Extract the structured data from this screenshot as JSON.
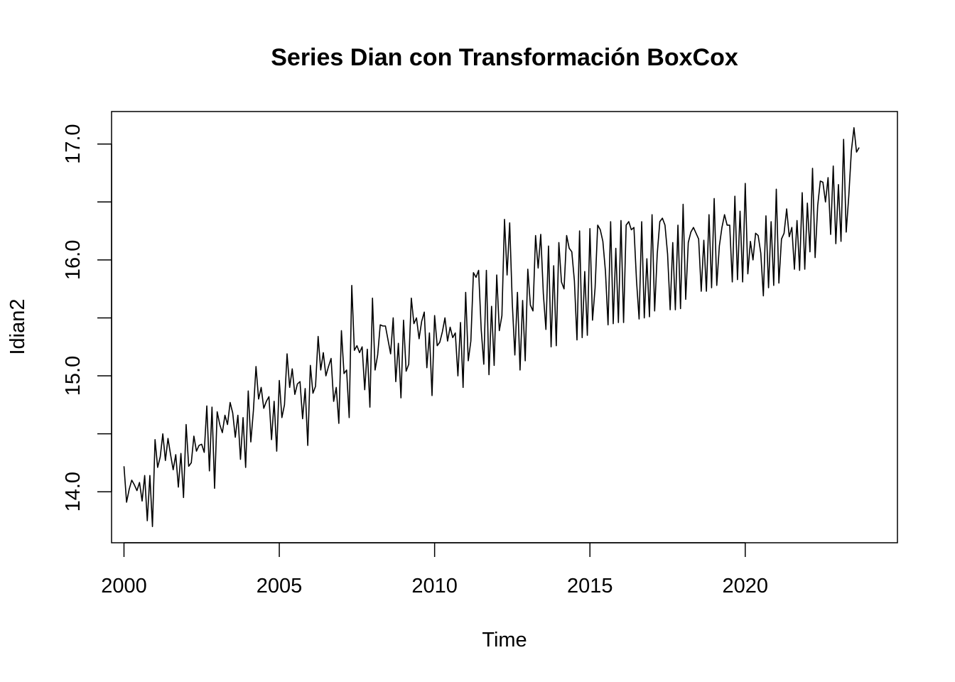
{
  "chart_data": {
    "type": "line",
    "title": "Series Dian con Transformación BoxCox",
    "xlabel": "Time",
    "ylabel": "Idian2",
    "xlim": [
      1999.6,
      2024.9
    ],
    "ylim": [
      13.56,
      17.28
    ],
    "x_ticks": [
      2000,
      2005,
      2010,
      2015,
      2020
    ],
    "x_tick_labels": [
      "2000",
      "2005",
      "2010",
      "2015",
      "2020"
    ],
    "y_ticks": [
      14.0,
      14.5,
      15.0,
      15.5,
      16.0,
      16.5,
      17.0
    ],
    "y_tick_labels": [
      "14.0",
      "",
      "15.0",
      "",
      "16.0",
      "",
      "17.0"
    ],
    "grid": false,
    "legend": "none",
    "series": [
      {
        "start": 2000,
        "frequency": 12,
        "color": "#000000",
        "values": [
          14.22,
          13.91,
          14.02,
          14.1,
          14.06,
          14.01,
          14.08,
          13.92,
          14.14,
          13.75,
          14.14,
          13.7,
          14.45,
          14.21,
          14.3,
          14.5,
          14.27,
          14.46,
          14.32,
          14.19,
          14.32,
          14.04,
          14.33,
          13.95,
          14.58,
          14.22,
          14.25,
          14.48,
          14.35,
          14.4,
          14.41,
          14.34,
          14.74,
          14.18,
          14.73,
          14.03,
          14.69,
          14.58,
          14.51,
          14.66,
          14.58,
          14.77,
          14.68,
          14.47,
          14.66,
          14.28,
          14.64,
          14.21,
          14.87,
          14.43,
          14.7,
          15.08,
          14.8,
          14.9,
          14.72,
          14.78,
          14.82,
          14.45,
          14.78,
          14.35,
          14.96,
          14.64,
          14.75,
          15.19,
          14.9,
          15.06,
          14.84,
          14.93,
          14.95,
          14.63,
          14.89,
          14.4,
          15.09,
          14.85,
          14.91,
          15.34,
          15.05,
          15.2,
          15.0,
          15.08,
          15.15,
          14.78,
          14.9,
          14.59,
          15.39,
          15.02,
          15.05,
          14.64,
          15.78,
          15.22,
          15.26,
          15.2,
          15.25,
          14.88,
          15.23,
          14.73,
          15.67,
          15.05,
          15.18,
          15.44,
          15.43,
          15.43,
          15.31,
          15.19,
          15.5,
          14.95,
          15.28,
          14.81,
          15.48,
          15.04,
          15.1,
          15.67,
          15.45,
          15.5,
          15.32,
          15.47,
          15.55,
          15.07,
          15.37,
          14.83,
          15.52,
          15.26,
          15.29,
          15.38,
          15.5,
          15.3,
          15.42,
          15.33,
          15.37,
          15.0,
          15.46,
          14.9,
          15.72,
          15.13,
          15.3,
          15.89,
          15.85,
          15.91,
          15.4,
          15.1,
          15.91,
          15.01,
          15.6,
          15.09,
          15.87,
          15.39,
          15.52,
          16.35,
          15.87,
          16.32,
          15.63,
          15.18,
          15.72,
          15.05,
          15.65,
          15.13,
          15.92,
          15.61,
          15.56,
          16.21,
          15.93,
          16.22,
          15.71,
          15.4,
          16.12,
          15.25,
          15.95,
          15.26,
          16.15,
          15.81,
          15.75,
          16.21,
          16.1,
          16.07,
          15.82,
          15.31,
          16.25,
          15.33,
          15.9,
          15.35,
          16.27,
          15.48,
          15.76,
          16.3,
          16.26,
          16.16,
          15.9,
          15.44,
          16.33,
          15.45,
          16.1,
          15.46,
          16.34,
          15.46,
          16.3,
          16.33,
          16.26,
          16.28,
          15.82,
          15.49,
          16.33,
          15.5,
          16.01,
          15.51,
          16.39,
          15.56,
          16.05,
          16.33,
          16.36,
          16.3,
          16.05,
          15.57,
          16.15,
          15.57,
          16.3,
          15.58,
          16.48,
          15.66,
          16.15,
          16.24,
          16.28,
          16.23,
          16.18,
          15.73,
          16.17,
          15.73,
          16.39,
          15.76,
          16.53,
          15.78,
          16.12,
          16.28,
          16.39,
          16.3,
          16.3,
          15.81,
          16.55,
          15.83,
          16.42,
          15.81,
          16.66,
          15.88,
          16.16,
          16.0,
          16.23,
          16.21,
          16.06,
          15.69,
          16.38,
          15.76,
          16.33,
          15.78,
          16.61,
          15.8,
          16.18,
          16.23,
          16.44,
          16.2,
          16.28,
          15.92,
          16.34,
          15.91,
          16.58,
          15.92,
          16.49,
          16.07,
          16.79,
          16.02,
          16.47,
          16.68,
          16.67,
          16.5,
          16.71,
          16.22,
          16.81,
          16.14,
          16.65,
          16.16,
          17.04,
          16.24,
          16.55,
          16.94,
          17.14,
          16.93,
          16.97
        ]
      }
    ]
  }
}
